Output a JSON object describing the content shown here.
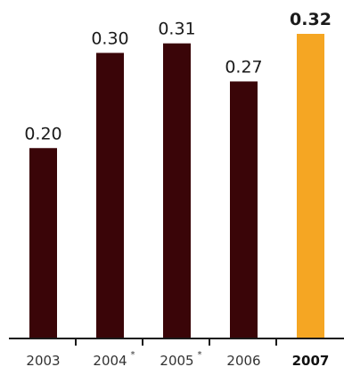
{
  "chart_data": {
    "type": "bar",
    "categories": [
      "2003",
      "2004",
      "2005",
      "2006",
      "2007"
    ],
    "category_markers": [
      "",
      "*",
      "*",
      "",
      ""
    ],
    "values": [
      0.2,
      0.3,
      0.31,
      0.27,
      0.32
    ],
    "value_labels": [
      "0.20",
      "0.30",
      "0.31",
      "0.27",
      "0.32"
    ],
    "highlight": [
      false,
      false,
      false,
      false,
      true
    ],
    "ylim": [
      0,
      0.32
    ],
    "grid": false,
    "title": "",
    "xlabel": "",
    "ylabel": "",
    "colors": {
      "bar": "#3a0508",
      "highlight": "#f5a623",
      "axis": "#1a1a1a"
    }
  }
}
